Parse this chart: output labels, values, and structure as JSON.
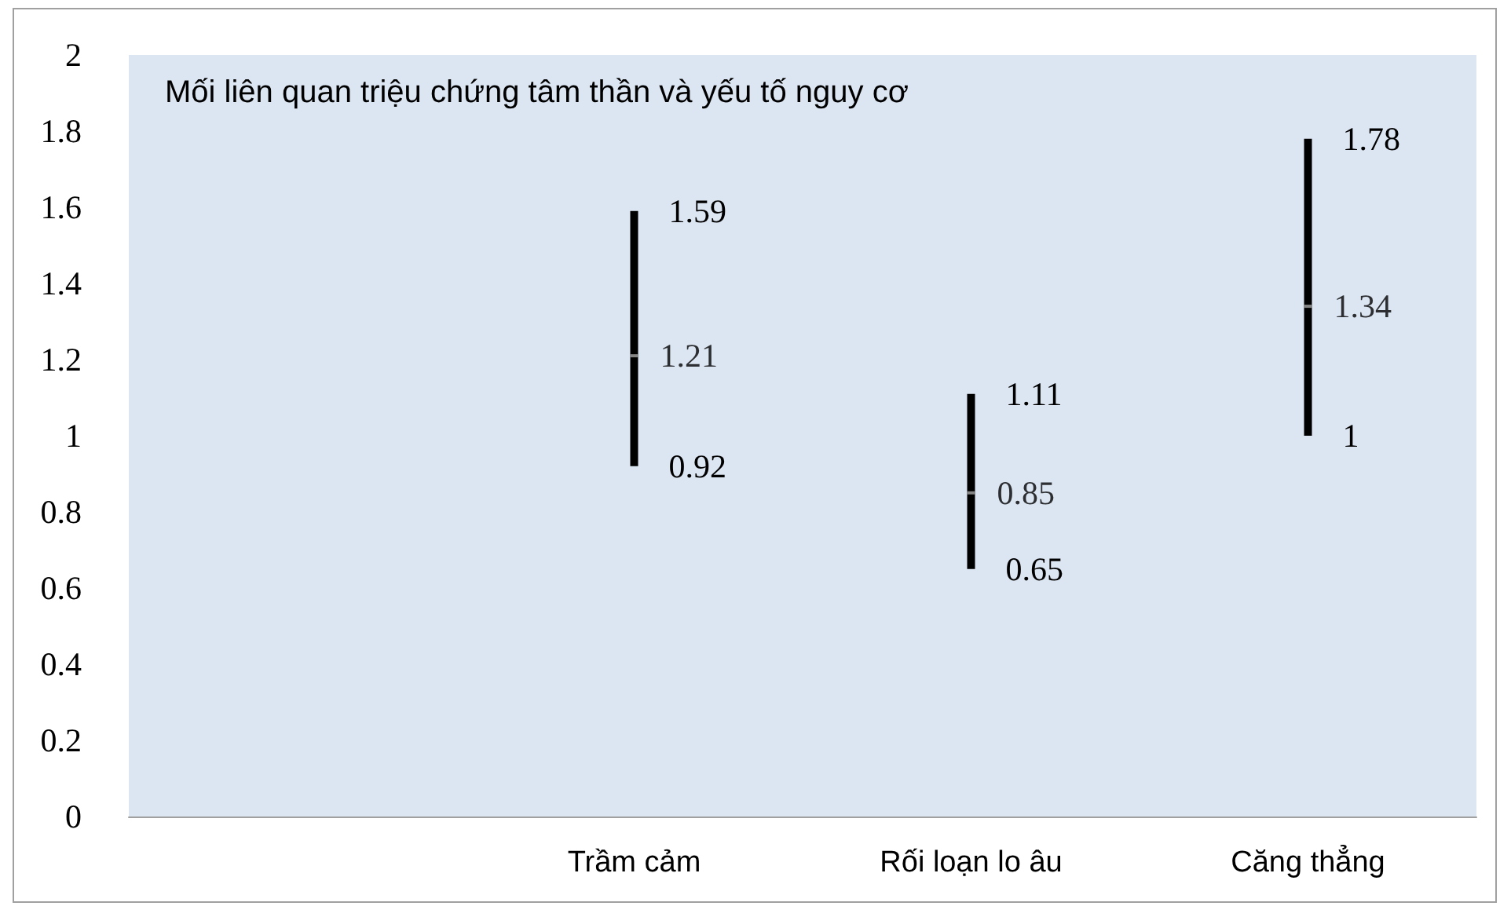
{
  "chart_data": {
    "type": "scatter",
    "title": "Mối liên quan triệu chứng tâm thần và yếu tố nguy cơ",
    "categories": [
      null,
      "Trầm cảm",
      "Rối loạn lo âu",
      "Căng thẳng"
    ],
    "series": [
      {
        "color": "#a6a6a6",
        "values": [
          null,
          1.21,
          0.85,
          1.34
        ],
        "errors": [
          null,
          [
            0.92,
            1.59
          ],
          [
            0.65,
            1.11
          ],
          [
            1.0,
            1.78
          ]
        ]
      }
    ],
    "data_labels": true,
    "annotations": [
      {
        "text": "1.59",
        "x": "Trầm cảm",
        "y": 1.59
      },
      {
        "text": "0.92",
        "x": "Trầm cảm",
        "y": 0.92
      },
      {
        "text": "1.11",
        "x": "Rối loạn lo âu",
        "y": 1.11
      },
      {
        "text": "0.65",
        "x": "Rối loạn lo âu",
        "y": 0.65
      },
      {
        "text": "1.78",
        "x": "Căng thẳng",
        "y": 1.78
      },
      {
        "text": "1",
        "x": "Căng thẳng",
        "y": 1.0
      }
    ],
    "ylim": [
      0,
      2
    ],
    "yticks": [
      0,
      0.2,
      0.4,
      0.6,
      0.8,
      1,
      1.2,
      1.4,
      1.6,
      1.8,
      2
    ],
    "marker": "square"
  }
}
